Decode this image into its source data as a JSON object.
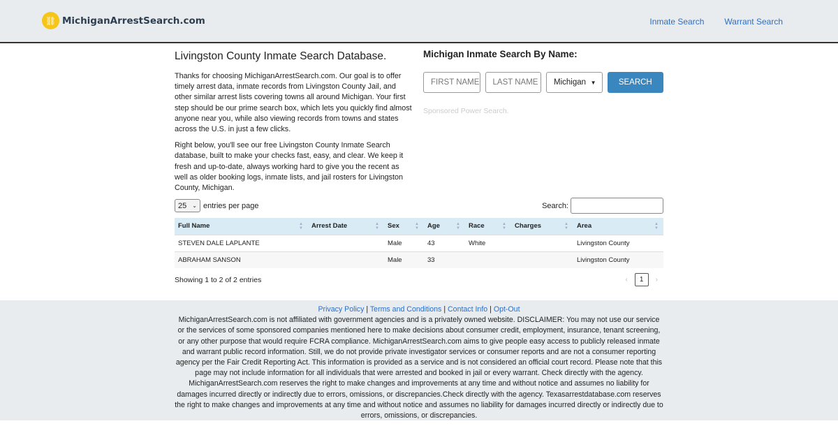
{
  "header": {
    "site_name": "MichiganArrestSearch.com",
    "nav": [
      "Inmate Search",
      "Warrant Search"
    ]
  },
  "intro": {
    "title": "Livingston County Inmate Search Database.",
    "paragraphs": [
      "Thanks for choosing MichiganArrestSearch.com. Our goal is to offer timely arrest data, inmate records from Livingston County Jail, and other similar arrest lists covering towns all around Michigan. Your first step should be our prime search box, which lets you quickly find almost anyone near you, while also viewing records from towns and states across the U.S. in just a few clicks.",
      "Right below, you'll see our free Livingston County Inmate Search database, built to make your checks fast, easy, and clear. We keep it fresh and up-to-date, always working hard to give you the recent as well as older booking logs, inmate lists, and jail rosters for Livingston County, Michigan."
    ]
  },
  "search": {
    "title": "Michigan Inmate Search By Name:",
    "first_placeholder": "FIRST NAME",
    "last_placeholder": "LAST NAME",
    "state": "Michigan",
    "button": "SEARCH",
    "sponsored": "Sponsored Power Search."
  },
  "table": {
    "page_length": "25",
    "length_label": "entries per page",
    "search_label": "Search:",
    "columns": [
      "Full Name",
      "Arrest Date",
      "Sex",
      "Age",
      "Race",
      "Charges",
      "Area"
    ],
    "rows": [
      [
        "STEVEN DALE LAPLANTE",
        "",
        "Male",
        "43",
        "White",
        "",
        "Livingston County"
      ],
      [
        "ABRAHAM SANSON",
        "",
        "Male",
        "33",
        "",
        "",
        "Livingston County"
      ]
    ],
    "info": "Showing 1 to 2 of 2 entries",
    "prev": "‹",
    "page": "1",
    "next": "›"
  },
  "footer": {
    "links": [
      "Privacy Policy",
      "Terms and Conditions",
      "Contact Info",
      "Opt-Out"
    ],
    "sep": "|",
    "disclaimer": "MichiganArrestSearch.com is not affiliated with government agencies and is a privately owned website. DISCLAIMER: You may not use our service or the services of some sponsored companies mentioned here to make decisions about consumer credit, employment, insurance, tenant screening, or any other purpose that would require FCRA compliance. MichiganArrestSearch.com aims to give people easy access to publicly released inmate and warrant public record information. Still, we do not provide private investigator services or consumer reports and are not a consumer reporting agency per the Fair Credit Reporting Act. This information is provided as a service and is not considered an official court record. Please note that this page may not include information for all individuals that were arrested and booked in jail or every warrant. Check directly with the agency. MichiganArrestSearch.com reserves the right to make changes and improvements at any time and without notice and assumes no liability for damages incurred directly or indirectly due to errors, omissions, or discrepancies.Check directly with the agency. Texasarrestdatabase.com reserves the right to make changes and improvements at any time and without notice and assumes no liability for damages incurred directly or indirectly due to errors, omissions, or discrepancies."
  }
}
